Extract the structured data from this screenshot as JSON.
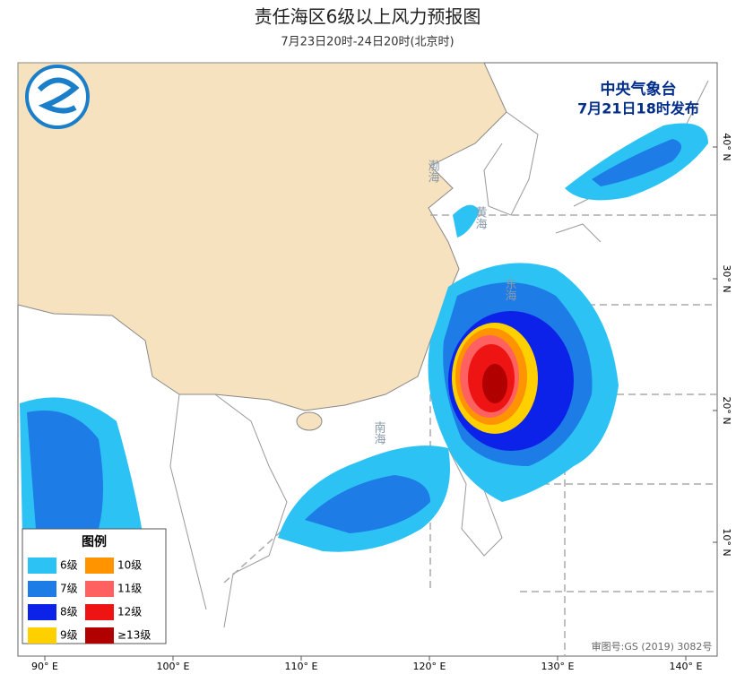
{
  "header": {
    "title": "责任海区6级以上风力预报图",
    "subtitle": "7月23日20时-24日20时(北京时)"
  },
  "issuer": {
    "name": "中央气象台",
    "issued": "7月21日18时发布"
  },
  "legend": {
    "title": "图例",
    "items": [
      {
        "label": "6级",
        "color": "#2cc3f4"
      },
      {
        "label": "7级",
        "color": "#1d7ce6"
      },
      {
        "label": "8级",
        "color": "#0c22e8"
      },
      {
        "label": "9级",
        "color": "#ffd000"
      },
      {
        "label": "10级",
        "color": "#ff9400"
      },
      {
        "label": "11级",
        "color": "#ff6060"
      },
      {
        "label": "12级",
        "color": "#ee1414"
      },
      {
        "label": "≥13级",
        "color": "#b00000"
      }
    ]
  },
  "seas": [
    "渤海",
    "黄海",
    "东海",
    "南海"
  ],
  "lon_ticks": [
    {
      "value": 90,
      "label": "90° E"
    },
    {
      "value": 100,
      "label": "100° E"
    },
    {
      "value": 110,
      "label": "110° E"
    },
    {
      "value": 120,
      "label": "120° E"
    },
    {
      "value": 130,
      "label": "130° E"
    },
    {
      "value": 140,
      "label": "140° E"
    }
  ],
  "lat_ticks": [
    {
      "value": 10,
      "label": "10° N"
    },
    {
      "value": 20,
      "label": "20° N"
    },
    {
      "value": 30,
      "label": "30° N"
    },
    {
      "value": 40,
      "label": "40° N"
    }
  ],
  "approval": "审图号:GS (2019) 3082号"
}
